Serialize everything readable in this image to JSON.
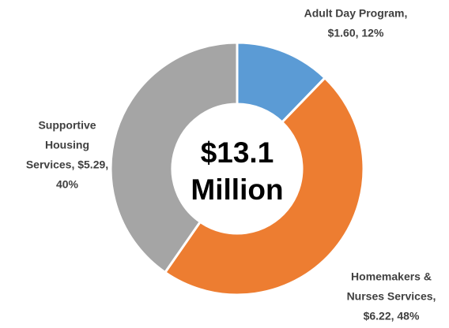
{
  "chart_data": {
    "type": "donut",
    "categories": [
      "Adult Day Program",
      "Homemakers & Nurses Services",
      "Supportive Housing Services"
    ],
    "values": [
      1.6,
      6.22,
      5.29
    ],
    "value_labels": [
      [
        "Adult Day Program,",
        "$1.60, 12%"
      ],
      [
        "Homemakers &",
        "Nurses Services,",
        "$6.22, 48%"
      ],
      [
        "Supportive",
        "Housing",
        "Services, $5.29,",
        "40%"
      ]
    ],
    "colors": [
      "#5b9bd5",
      "#ed7d31",
      "#a5a5a5"
    ],
    "center_label": [
      "$13.1",
      "Million"
    ]
  }
}
